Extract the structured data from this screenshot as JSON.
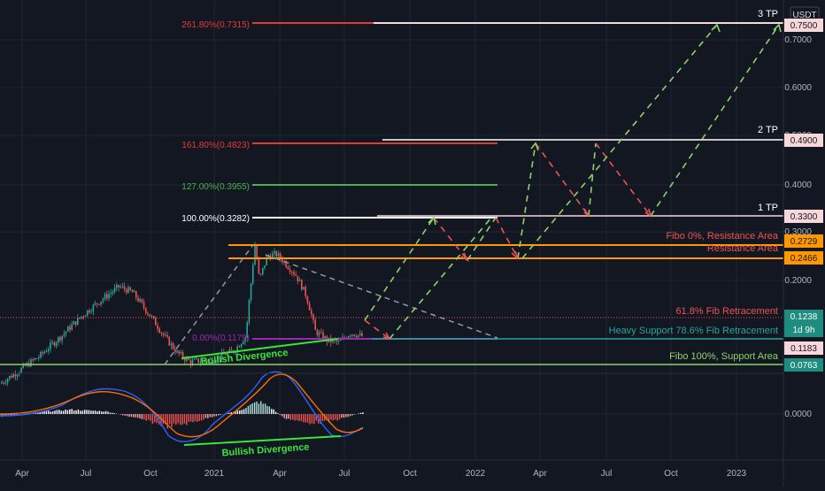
{
  "theme": {
    "background": "#131722",
    "grid": "#1f2433",
    "up": "#26a69a",
    "down": "#ef5350",
    "axis_text": "#b2b5be",
    "white_line": "#ffffff",
    "red_line": "#e53935",
    "green_line": "#4caf50",
    "orange_line": "#ff9800",
    "teal_line": "#26a69a",
    "purple_line": "#9c27b0",
    "proj_green": "#8bd36a",
    "proj_red": "#ef5350",
    "divergence": "#39e639",
    "macd_line": "#2962ff",
    "signal_line": "#ff6d00"
  },
  "currency": "USDT",
  "chart_data": {
    "type": "candlestick",
    "scale": "log",
    "price_axis": {
      "ticks": [
        "0.7000",
        "0.6000",
        "0.5000",
        "0.4000",
        "0.3000",
        "0.2000",
        "0.0000"
      ]
    },
    "time_axis": {
      "ticks": [
        "Apr",
        "Jul",
        "Oct",
        "2021",
        "Apr",
        "Jul",
        "Oct",
        "2022",
        "Apr",
        "Jul",
        "Oct",
        "2023"
      ]
    },
    "price_tags": [
      {
        "value": "0.7500",
        "style": "pink"
      },
      {
        "value": "0.4900",
        "style": "pink"
      },
      {
        "value": "0.3300",
        "style": "pink"
      },
      {
        "value": "0.2729",
        "style": "orange"
      },
      {
        "value": "0.2466",
        "style": "orange"
      },
      {
        "value": "0.1238",
        "style": "teal"
      },
      {
        "value": "1d 9h",
        "style": "teal"
      },
      {
        "value": "0.1183",
        "style": "pink"
      },
      {
        "value": "0.0763",
        "style": "teal"
      }
    ],
    "fib_levels": [
      {
        "label": "261.80%(0.7315)",
        "color": "red",
        "value": 0.7315
      },
      {
        "label": "161.80%(0.4823)",
        "color": "red",
        "value": 0.4823
      },
      {
        "label": "127.00%(0.3955)",
        "color": "green",
        "value": 0.3955
      },
      {
        "label": "100.00%(0.3282)",
        "color": "white",
        "value": 0.3282
      },
      {
        "label": "0.00%(0.1179)",
        "color": "purple",
        "value": 0.1179
      }
    ],
    "annotations": [
      {
        "text": "3 TP",
        "color": "white"
      },
      {
        "text": "2 TP",
        "color": "white"
      },
      {
        "text": "1 TP",
        "color": "white"
      },
      {
        "text": "Fibo 0%, Resistance Area",
        "color": "red"
      },
      {
        "text": "Resistance Area",
        "color": "red"
      },
      {
        "text": "61.8% Fib Retracement",
        "color": "red"
      },
      {
        "text": "Heavy Support 78.6% Fib Retracement",
        "color": "teal"
      },
      {
        "text": "Fibo 100%, Support Area",
        "color": "green"
      },
      {
        "text": "Bullish Divergence",
        "color": "green"
      },
      {
        "text": "Bullish Divergence",
        "color": "green"
      }
    ],
    "series": [
      {
        "segment": "2020 Mar–Sep rally",
        "from": 0.083,
        "to": 0.19
      },
      {
        "segment": "2020 Sep–Dec decline",
        "from": 0.19,
        "to": 0.098
      },
      {
        "segment": "2021 Feb spike",
        "from": 0.105,
        "to": 0.273
      },
      {
        "segment": "2021 Apr–Jul decline",
        "from": 0.25,
        "to": 0.118
      },
      {
        "segment": "2021 Jul–Aug",
        "from": 0.118,
        "to": 0.124
      }
    ]
  }
}
